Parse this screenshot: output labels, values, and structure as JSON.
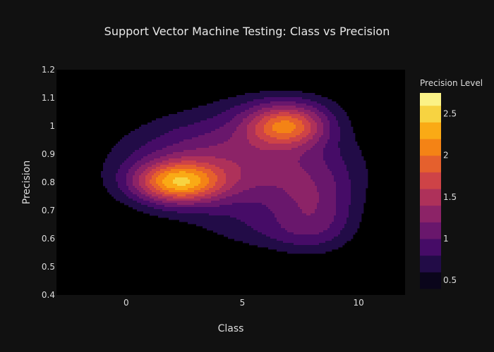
{
  "chart_data": {
    "type": "contour",
    "title": "Support Vector Machine Testing: Class vs Precision",
    "xlabel": "Class",
    "ylabel": "Precision",
    "xlim": [
      -3,
      12
    ],
    "ylim": [
      0.4,
      1.2
    ],
    "xticks": [
      0,
      5,
      10
    ],
    "yticks": [
      0.4,
      0.5,
      0.6,
      0.7,
      0.8,
      0.9,
      1.0,
      1.1,
      1.2
    ],
    "ytick_labels": [
      "0.4",
      "0.5",
      "0.6",
      "0.7",
      "0.8",
      "0.9",
      "1",
      "1.1",
      "1.2"
    ],
    "colorbar": {
      "title": "Precision Level",
      "ticks": [
        0.5,
        1,
        1.5,
        2,
        2.5
      ],
      "tick_labels": [
        "0.5",
        "1",
        "1.5",
        "2",
        "2.5"
      ],
      "range": [
        0.4,
        2.75
      ],
      "levels": [
        0.4,
        0.6,
        0.8,
        1.0,
        1.2,
        1.4,
        1.6,
        1.8,
        2.0,
        2.2,
        2.4,
        2.6,
        2.75
      ],
      "colorscale": [
        "#000004",
        "#1b0c41",
        "#4a0c6b",
        "#781c6d",
        "#a52c60",
        "#cf4446",
        "#ed6925",
        "#fb9b06",
        "#f7d13d",
        "#fcffa4"
      ]
    },
    "peaks": [
      {
        "x": 2.2,
        "y": 0.8,
        "level": 2.7
      },
      {
        "x": 6.9,
        "y": 1.0,
        "level": 2.7
      }
    ],
    "background": "#000000"
  }
}
